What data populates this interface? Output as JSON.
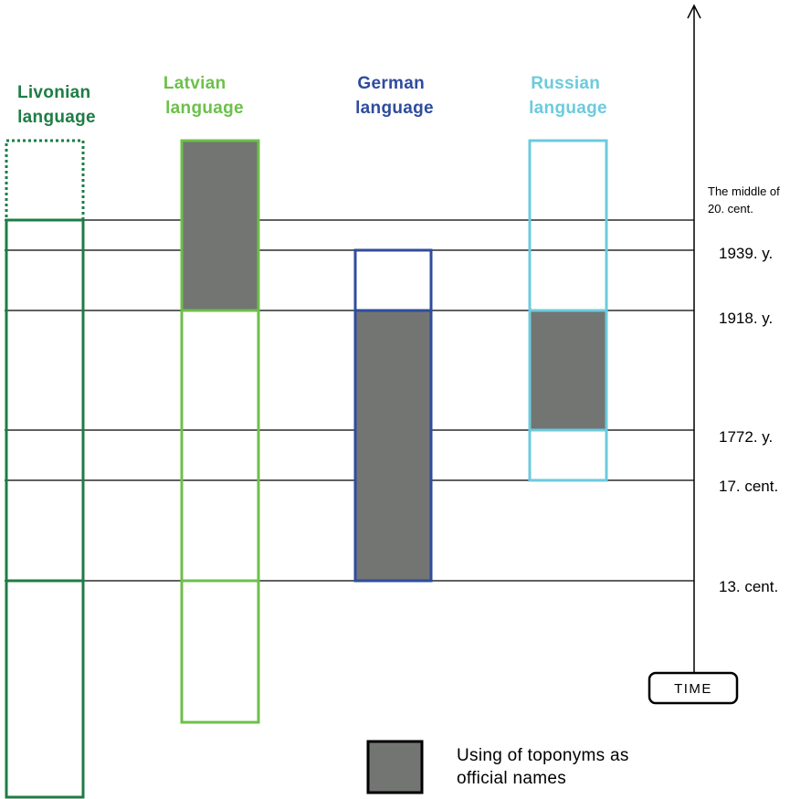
{
  "colors": {
    "livonian": "#1e7d45",
    "latvian": "#6cc04a",
    "german": "#2f4c9e",
    "russian": "#6ccbdc",
    "official_fill": "#737573",
    "line": "#000000"
  },
  "columns": [
    {
      "key": "livonian",
      "line1": "Livonian",
      "line2": "language"
    },
    {
      "key": "latvian",
      "line1": "Latvian",
      "line2": "language"
    },
    {
      "key": "german",
      "line1": "German",
      "line2": "language"
    },
    {
      "key": "russian",
      "line1": "Russian",
      "line2": "language"
    }
  ],
  "time_axis": {
    "label": "TIME",
    "marks": [
      {
        "key": "mid20",
        "line1": "The middle of",
        "line2": "20. cent."
      },
      {
        "key": "y1939",
        "label": "1939. y."
      },
      {
        "key": "y1918",
        "label": "1918. y."
      },
      {
        "key": "y1772",
        "label": "1772. y."
      },
      {
        "key": "c17",
        "label": "17. cent."
      },
      {
        "key": "c13",
        "label": "13. cent."
      }
    ]
  },
  "legend": {
    "line1": "Using of toponyms as",
    "line2": "official names"
  },
  "periods": {
    "livonian": {
      "usage": [
        "before-13. cent.",
        "The middle of 20. cent."
      ],
      "uncertain_after": true,
      "official": null
    },
    "latvian": {
      "usage": [
        "before-13. cent.",
        "present"
      ],
      "official": [
        "1918. y.",
        "present"
      ]
    },
    "german": {
      "usage": [
        "13. cent.",
        "1939. y."
      ],
      "official": [
        "13. cent.",
        "1918. y."
      ]
    },
    "russian": {
      "usage": [
        "17. cent.",
        "present"
      ],
      "official": [
        "1772. y.",
        "1918. y."
      ]
    }
  }
}
